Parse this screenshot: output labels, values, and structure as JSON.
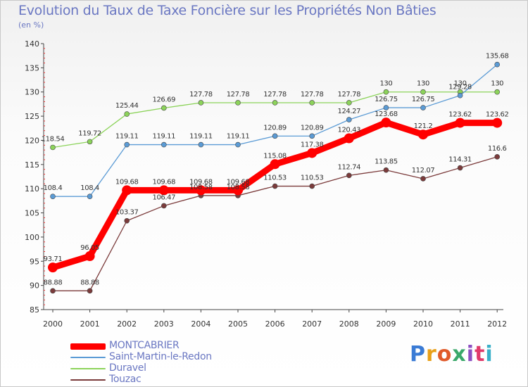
{
  "chart_data": {
    "type": "line",
    "title": "Evolution du Taux de Taxe Foncière sur les Propriétés Non Bâties",
    "subtitle": "(en %)",
    "x": [
      "2000",
      "2001",
      "2002",
      "2003",
      "2004",
      "2005",
      "2006",
      "2007",
      "2008",
      "2009",
      "2010",
      "2011",
      "2012"
    ],
    "ylim": [
      85,
      140
    ],
    "yticks": [
      "85",
      "90",
      "95",
      "100",
      "105",
      "110",
      "115",
      "120",
      "125",
      "130",
      "135",
      "140"
    ],
    "grid": false,
    "legend_position": "bottom-left",
    "series": [
      {
        "name": "MONTCABRIER",
        "color": "#ff0000",
        "values": [
          93.71,
          96.05,
          109.68,
          109.68,
          109.68,
          109.68,
          115.08,
          117.38,
          120.43,
          123.68,
          121.2,
          123.62,
          123.62
        ],
        "labels": [
          "93.71",
          "96.05",
          "109.68",
          "109.68",
          "109.68",
          "109.68",
          "115.08",
          "117.38",
          "120.43",
          "123.68",
          "121.2",
          "123.62",
          "123.62"
        ]
      },
      {
        "name": "Saint-Martin-le-Redon",
        "color": "#5b9bd5",
        "values": [
          108.4,
          108.4,
          119.11,
          119.11,
          119.11,
          119.11,
          120.89,
          120.89,
          124.27,
          126.75,
          126.75,
          129.28,
          135.68
        ],
        "labels": [
          "108.4",
          "108.4",
          "119.11",
          "119.11",
          "119.11",
          "119.11",
          "120.89",
          "120.89",
          "124.27",
          "126.75",
          "126.75",
          "129.28",
          "135.68"
        ]
      },
      {
        "name": "Duravel",
        "color": "#8cd35a",
        "values": [
          118.54,
          119.72,
          125.44,
          126.69,
          127.78,
          127.78,
          127.78,
          127.78,
          127.78,
          130,
          130,
          130,
          130
        ],
        "labels": [
          "118.54",
          "119.72",
          "125.44",
          "126.69",
          "127.78",
          "127.78",
          "127.78",
          "127.78",
          "127.78",
          "130",
          "130",
          "130",
          "130"
        ]
      },
      {
        "name": "Touzac",
        "color": "#7b3b3b",
        "values": [
          88.88,
          88.88,
          103.37,
          106.47,
          108.58,
          108.58,
          110.53,
          110.53,
          112.74,
          113.85,
          112.07,
          114.31,
          116.6
        ],
        "labels": [
          "88.88",
          "88.88",
          "103.37",
          "106.47",
          "108.58",
          "108.58",
          "110.53",
          "110.53",
          "112.74",
          "113.85",
          "112.07",
          "114.31",
          "116.6"
        ]
      }
    ]
  },
  "logo": {
    "text": "Proxiti",
    "letters": [
      "P",
      "r",
      "o",
      "x",
      "i",
      "t",
      "i"
    ],
    "colors": [
      "#3a7bd5",
      "#e8a019",
      "#e05a2a",
      "#3aa86a",
      "#8c4fc2",
      "#e03a6a",
      "#3ab0c8"
    ]
  }
}
